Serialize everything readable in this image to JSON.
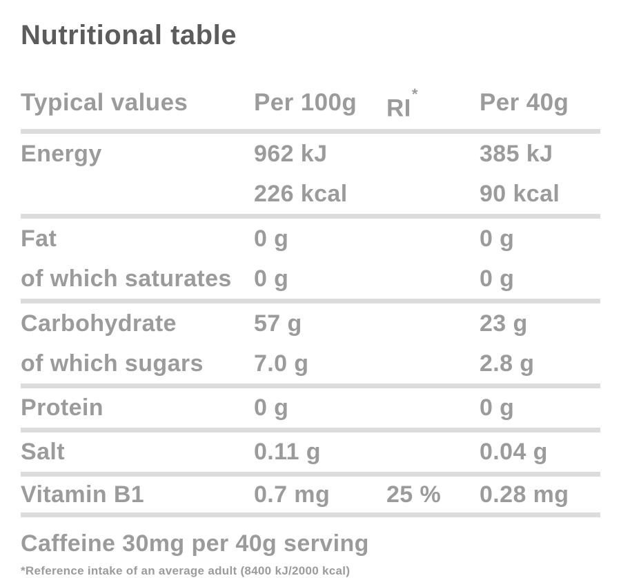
{
  "title": "Nutritional table",
  "header": {
    "label_col": "Typical values",
    "per100_col": "Per 100g",
    "ri_col": "RI",
    "ri_col_sup": "*",
    "serving_col": "Per 40g"
  },
  "rows": {
    "energy": {
      "label": "Energy",
      "per100_line1": "962 kJ",
      "per100_line2": "226 kcal",
      "serving_line1": "385 kJ",
      "serving_line2": "90 kcal"
    },
    "fat": {
      "label": "Fat",
      "per100": "0 g",
      "serving": "0 g"
    },
    "saturates": {
      "label": "of which saturates",
      "per100": "0 g",
      "serving": "0 g"
    },
    "carbohydrate": {
      "label": "Carbohydrate",
      "per100": "57 g",
      "serving": "23 g"
    },
    "sugars": {
      "label": "of which sugars",
      "per100": "7.0 g",
      "serving": "2.8 g"
    },
    "protein": {
      "label": "Protein",
      "per100": "0 g",
      "serving": "0 g"
    },
    "salt": {
      "label": "Salt",
      "per100": "0.11 g",
      "serving": "0.04 g"
    },
    "vitamin_b1": {
      "label": "Vitamin B1",
      "per100": "0.7 mg",
      "ri": "25 %",
      "serving": "0.28 mg"
    }
  },
  "caffeine_note": "Caffeine 30mg per 40g serving",
  "footnote": "*Reference intake of an average adult (8400 kJ/2000 kcal)",
  "colors": {
    "title_text": "#5c5c5c",
    "body_text": "#9b9b9b",
    "rule": "#dcdcdc",
    "background": "#ffffff"
  }
}
